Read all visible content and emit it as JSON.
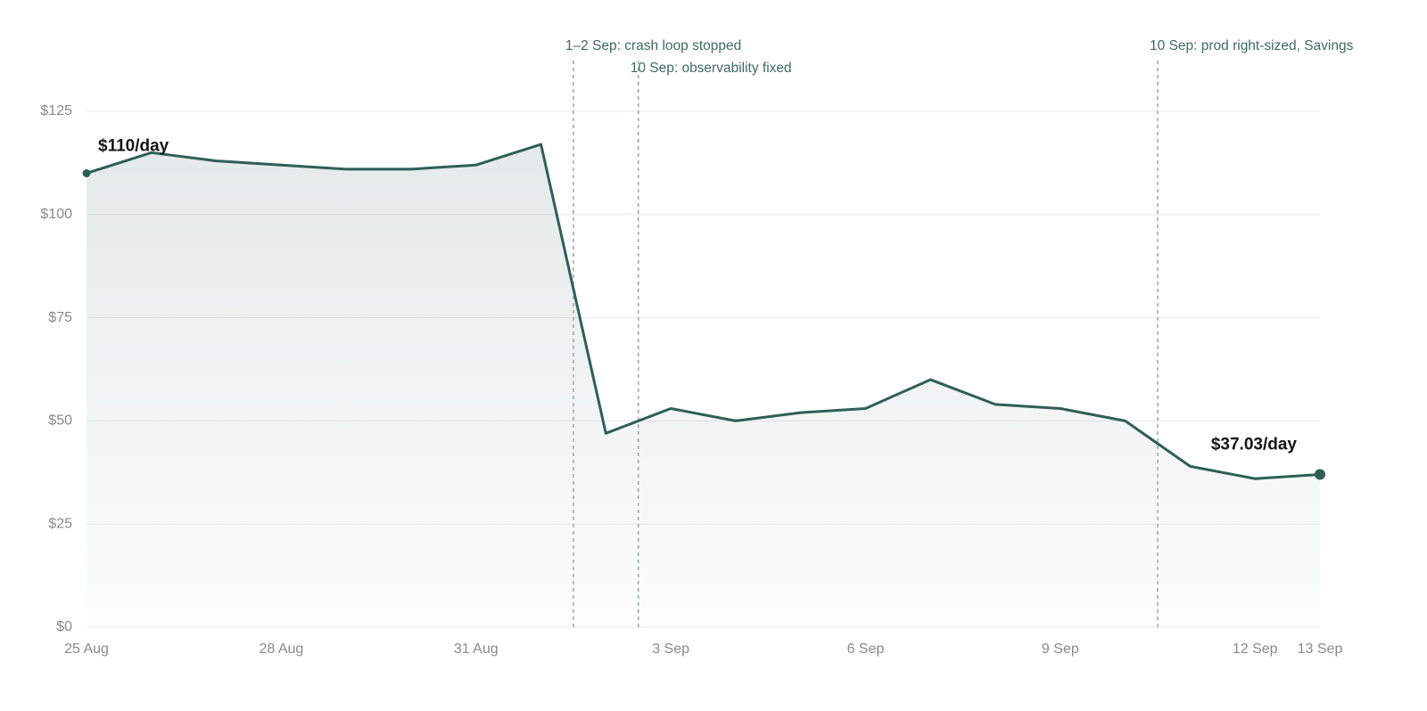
{
  "chart_data": {
    "type": "line",
    "categories": [
      "25 Aug",
      null,
      null,
      "28 Aug",
      null,
      null,
      "31 Aug",
      null,
      null,
      "3 Sep",
      null,
      null,
      "6 Sep",
      null,
      null,
      "9 Sep",
      null,
      null,
      "12 Sep",
      "13 Sep"
    ],
    "values": [
      110,
      115,
      113,
      112,
      111,
      111,
      112,
      117,
      47,
      53,
      50,
      52,
      53,
      60,
      54,
      53,
      50,
      39,
      36,
      37.03
    ],
    "value_labels": [
      "$110/day",
      null,
      null,
      null,
      null,
      null,
      null,
      null,
      null,
      null,
      null,
      null,
      null,
      null,
      null,
      null,
      null,
      null,
      null,
      "$37.03/day"
    ],
    "color": "#2f5f54",
    "ylim": [
      0,
      125
    ],
    "yticks": [
      {
        "value": 0,
        "label": "$0"
      },
      {
        "value": 25,
        "label": "$25"
      },
      {
        "value": 50,
        "label": "$50"
      },
      {
        "value": 75,
        "label": "$75"
      },
      {
        "value": 100,
        "label": "$100"
      },
      {
        "value": 125,
        "label": "$125"
      }
    ],
    "grid": true,
    "annotations": [
      {
        "x": 7.5,
        "text": "1–2 Sep: crash loop stopped"
      },
      {
        "x": 8.5,
        "text": "10 Sep: observability fixed"
      },
      {
        "x": 16.5,
        "text": "10 Sep: prod right-sized, Savings"
      }
    ]
  }
}
